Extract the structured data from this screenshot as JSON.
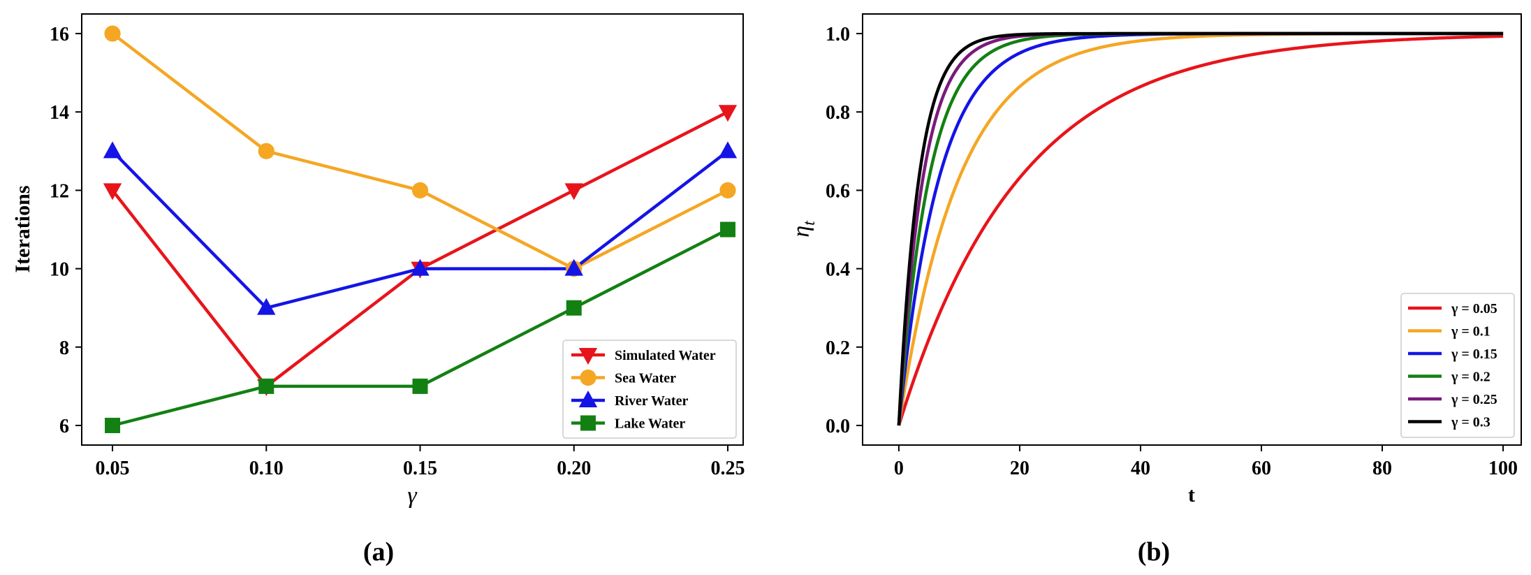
{
  "chart_data": [
    {
      "type": "line",
      "panel_label": "(a)",
      "xlabel": "γ",
      "ylabel": "Iterations",
      "x": [
        0.05,
        0.1,
        0.15,
        0.2,
        0.25
      ],
      "x_tick_labels": [
        "0.05",
        "0.10",
        "0.15",
        "0.20",
        "0.25"
      ],
      "xlim": [
        0.04,
        0.255
      ],
      "ylim": [
        5.5,
        16.5
      ],
      "y_ticks": [
        6,
        8,
        10,
        12,
        14,
        16
      ],
      "y_tick_labels": [
        "6",
        "8",
        "10",
        "12",
        "14",
        "16"
      ],
      "legend_position": "lower-right",
      "series": [
        {
          "name": "Simulated Water",
          "color": "#e8141b",
          "marker": "triangle-down",
          "values": [
            12,
            7,
            10,
            12,
            14
          ]
        },
        {
          "name": "Sea Water",
          "color": "#f5a623",
          "marker": "circle",
          "values": [
            16,
            13,
            12,
            10,
            12
          ]
        },
        {
          "name": "River Water",
          "color": "#1414e6",
          "marker": "triangle-up",
          "values": [
            13,
            9,
            10,
            10,
            13
          ]
        },
        {
          "name": "Lake Water",
          "color": "#138013",
          "marker": "square",
          "values": [
            6,
            7,
            7,
            9,
            11
          ]
        }
      ]
    },
    {
      "type": "line",
      "panel_label": "(b)",
      "xlabel": "t",
      "ylabel": "η_t",
      "ylabel_main": "η",
      "ylabel_sub": "t",
      "function": "eta_t = 1 - exp(-gamma * t)",
      "xlim": [
        -6,
        103
      ],
      "ylim": [
        -0.05,
        1.05
      ],
      "x_ticks": [
        0,
        20,
        40,
        60,
        80,
        100
      ],
      "x_tick_labels": [
        "0",
        "20",
        "40",
        "60",
        "80",
        "100"
      ],
      "y_ticks": [
        0.0,
        0.2,
        0.4,
        0.6,
        0.8,
        1.0
      ],
      "y_tick_labels": [
        "0.0",
        "0.2",
        "0.4",
        "0.6",
        "0.8",
        "1.0"
      ],
      "t_range": [
        0,
        100
      ],
      "legend_position": "lower-right",
      "series": [
        {
          "name": "γ = 0.05",
          "gamma": 0.05,
          "color": "#e8141b"
        },
        {
          "name": "γ = 0.1",
          "gamma": 0.1,
          "color": "#f5a623"
        },
        {
          "name": "γ = 0.15",
          "gamma": 0.15,
          "color": "#1414e6"
        },
        {
          "name": "γ = 0.2",
          "gamma": 0.2,
          "color": "#138013"
        },
        {
          "name": "γ = 0.25",
          "gamma": 0.25,
          "color": "#7b1a7b"
        },
        {
          "name": "γ = 0.3",
          "gamma": 0.3,
          "color": "#000000"
        }
      ]
    }
  ]
}
